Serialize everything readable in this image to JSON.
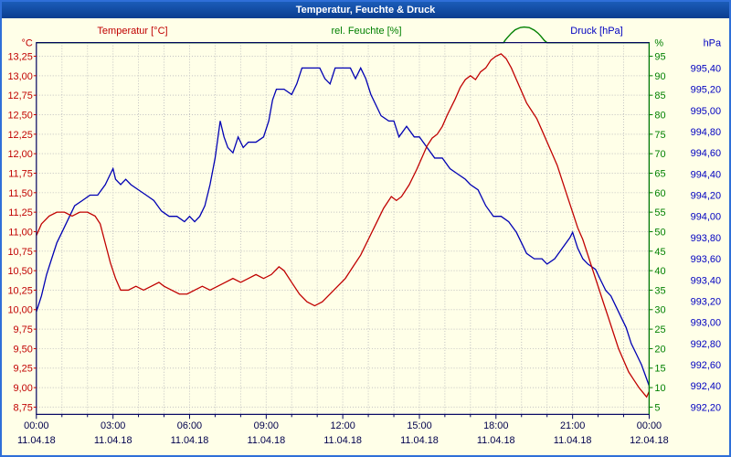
{
  "window": {
    "title": "Temperatur, Feuchte & Druck"
  },
  "legend": {
    "temperature": "Temperatur [°C]",
    "humidity": "rel. Feuchte [%]",
    "pressure": "Druck [hPa]"
  },
  "colors": {
    "background": "#ffffe8",
    "titlebar": "#0d4aa0",
    "window_border": "#2f6fd8",
    "grid": "#c0c0c0",
    "frame": "#000060",
    "temperature": "#c00000",
    "humidity": "#008000",
    "pressure": "#0000b3",
    "x_labels": "#00004d"
  },
  "chart_data": {
    "type": "line",
    "title": "Temperatur, Feuchte & Druck",
    "grid": "dotted; vertical line every hour, horizontal line every temperature step",
    "legend_position": "top",
    "x_axis": {
      "range_hours": [
        0,
        24
      ],
      "tick_step_hours": 3,
      "tick_times": [
        "00:00",
        "03:00",
        "06:00",
        "09:00",
        "12:00",
        "15:00",
        "18:00",
        "21:00",
        "00:00"
      ],
      "tick_dates": [
        "11.04.18",
        "11.04.18",
        "11.04.18",
        "11.04.18",
        "11.04.18",
        "11.04.18",
        "11.04.18",
        "11.04.18",
        "12.04.18"
      ]
    },
    "axes": {
      "temperature": {
        "label": "°C",
        "min": 8.75,
        "max": 13.25,
        "step": 0.25,
        "tick_labels": [
          "13,25",
          "13,00",
          "12,75",
          "12,50",
          "12,25",
          "12,00",
          "11,75",
          "11,50",
          "11,25",
          "11,00",
          "10,75",
          "10,50",
          "10,25",
          "10,00",
          "9,75",
          "9,50",
          "9,25",
          "9,00",
          "8,75"
        ]
      },
      "humidity": {
        "label": "%",
        "min": 5,
        "max": 95,
        "step": 5,
        "tick_labels": [
          "95",
          "90",
          "85",
          "80",
          "75",
          "70",
          "65",
          "60",
          "55",
          "50",
          "45",
          "40",
          "35",
          "30",
          "25",
          "20",
          "15",
          "10",
          "5"
        ]
      },
      "pressure": {
        "label": "hPa",
        "min": 992.2,
        "max": 995.4,
        "step": 0.2,
        "tick_labels": [
          "995,40",
          "995,20",
          "995,00",
          "994,80",
          "994,60",
          "994,40",
          "994,20",
          "994,00",
          "993,80",
          "993,60",
          "993,40",
          "993,20",
          "993,00",
          "992,80",
          "992,60",
          "992,40",
          "992,20"
        ]
      }
    },
    "series": [
      {
        "name": "Temperatur",
        "unit": "°C",
        "color": "#c00000",
        "points": [
          [
            0,
            10.95
          ],
          [
            0.2,
            11.1
          ],
          [
            0.5,
            11.2
          ],
          [
            0.8,
            11.25
          ],
          [
            1.1,
            11.25
          ],
          [
            1.4,
            11.2
          ],
          [
            1.7,
            11.25
          ],
          [
            2.0,
            11.25
          ],
          [
            2.3,
            11.2
          ],
          [
            2.5,
            11.1
          ],
          [
            2.7,
            10.85
          ],
          [
            2.9,
            10.6
          ],
          [
            3.1,
            10.4
          ],
          [
            3.3,
            10.25
          ],
          [
            3.6,
            10.25
          ],
          [
            3.9,
            10.3
          ],
          [
            4.2,
            10.25
          ],
          [
            4.5,
            10.3
          ],
          [
            4.8,
            10.35
          ],
          [
            5.0,
            10.3
          ],
          [
            5.3,
            10.25
          ],
          [
            5.6,
            10.2
          ],
          [
            5.9,
            10.2
          ],
          [
            6.2,
            10.25
          ],
          [
            6.5,
            10.3
          ],
          [
            6.8,
            10.25
          ],
          [
            7.1,
            10.3
          ],
          [
            7.4,
            10.35
          ],
          [
            7.7,
            10.4
          ],
          [
            8.0,
            10.35
          ],
          [
            8.3,
            10.4
          ],
          [
            8.6,
            10.45
          ],
          [
            8.9,
            10.4
          ],
          [
            9.2,
            10.45
          ],
          [
            9.5,
            10.55
          ],
          [
            9.7,
            10.5
          ],
          [
            10.0,
            10.35
          ],
          [
            10.3,
            10.2
          ],
          [
            10.6,
            10.1
          ],
          [
            10.9,
            10.05
          ],
          [
            11.2,
            10.1
          ],
          [
            11.5,
            10.2
          ],
          [
            11.8,
            10.3
          ],
          [
            12.1,
            10.4
          ],
          [
            12.4,
            10.55
          ],
          [
            12.7,
            10.7
          ],
          [
            13.0,
            10.9
          ],
          [
            13.3,
            11.1
          ],
          [
            13.6,
            11.3
          ],
          [
            13.9,
            11.45
          ],
          [
            14.1,
            11.4
          ],
          [
            14.3,
            11.45
          ],
          [
            14.6,
            11.6
          ],
          [
            14.9,
            11.8
          ],
          [
            15.1,
            11.95
          ],
          [
            15.3,
            12.1
          ],
          [
            15.5,
            12.2
          ],
          [
            15.7,
            12.25
          ],
          [
            15.9,
            12.35
          ],
          [
            16.1,
            12.5
          ],
          [
            16.4,
            12.7
          ],
          [
            16.6,
            12.85
          ],
          [
            16.8,
            12.95
          ],
          [
            17.0,
            13.0
          ],
          [
            17.2,
            12.95
          ],
          [
            17.4,
            13.05
          ],
          [
            17.6,
            13.1
          ],
          [
            17.8,
            13.2
          ],
          [
            18.0,
            13.25
          ],
          [
            18.2,
            13.28
          ],
          [
            18.4,
            13.22
          ],
          [
            18.6,
            13.1
          ],
          [
            18.8,
            12.95
          ],
          [
            19.0,
            12.8
          ],
          [
            19.2,
            12.65
          ],
          [
            19.4,
            12.55
          ],
          [
            19.6,
            12.45
          ],
          [
            19.8,
            12.3
          ],
          [
            20.0,
            12.15
          ],
          [
            20.2,
            12.0
          ],
          [
            20.4,
            11.85
          ],
          [
            20.6,
            11.65
          ],
          [
            20.8,
            11.45
          ],
          [
            21.0,
            11.25
          ],
          [
            21.2,
            11.05
          ],
          [
            21.4,
            10.9
          ],
          [
            21.6,
            10.7
          ],
          [
            21.8,
            10.5
          ],
          [
            22.0,
            10.3
          ],
          [
            22.2,
            10.1
          ],
          [
            22.4,
            9.9
          ],
          [
            22.6,
            9.7
          ],
          [
            22.8,
            9.5
          ],
          [
            23.0,
            9.35
          ],
          [
            23.2,
            9.2
          ],
          [
            23.4,
            9.1
          ],
          [
            23.6,
            9.0
          ],
          [
            23.8,
            8.92
          ],
          [
            23.9,
            8.88
          ],
          [
            24,
            8.95
          ]
        ]
      },
      {
        "name": "rel. Feuchte",
        "unit": "%",
        "color": "#008000",
        "points": [
          [
            0,
            98.5
          ],
          [
            18.3,
            98.5
          ],
          [
            18.35,
            99.0
          ],
          [
            18.45,
            99.8
          ],
          [
            18.6,
            100.9
          ],
          [
            18.75,
            101.8
          ],
          [
            18.95,
            102.35
          ],
          [
            19.1,
            102.5
          ],
          [
            19.3,
            102.35
          ],
          [
            19.5,
            101.7
          ],
          [
            19.65,
            100.9
          ],
          [
            19.75,
            100.2
          ],
          [
            19.9,
            99.0
          ],
          [
            20.0,
            98.5
          ],
          [
            24,
            98.5
          ]
        ]
      },
      {
        "name": "Druck",
        "unit": "hPa",
        "color": "#0000b3",
        "points": [
          [
            0,
            993.1
          ],
          [
            0.2,
            993.25
          ],
          [
            0.4,
            993.45
          ],
          [
            0.6,
            993.6
          ],
          [
            0.8,
            993.75
          ],
          [
            1.0,
            993.85
          ],
          [
            1.2,
            993.95
          ],
          [
            1.5,
            994.1
          ],
          [
            1.8,
            994.15
          ],
          [
            2.1,
            994.2
          ],
          [
            2.4,
            994.2
          ],
          [
            2.7,
            994.3
          ],
          [
            2.9,
            994.4
          ],
          [
            3.0,
            994.45
          ],
          [
            3.1,
            994.35
          ],
          [
            3.3,
            994.3
          ],
          [
            3.5,
            994.35
          ],
          [
            3.7,
            994.3
          ],
          [
            4.0,
            994.25
          ],
          [
            4.3,
            994.2
          ],
          [
            4.6,
            994.15
          ],
          [
            4.9,
            994.05
          ],
          [
            5.2,
            994.0
          ],
          [
            5.5,
            994.0
          ],
          [
            5.8,
            993.95
          ],
          [
            6.0,
            994.0
          ],
          [
            6.2,
            993.95
          ],
          [
            6.4,
            994.0
          ],
          [
            6.6,
            994.1
          ],
          [
            6.8,
            994.3
          ],
          [
            7.0,
            994.55
          ],
          [
            7.2,
            994.9
          ],
          [
            7.35,
            994.75
          ],
          [
            7.5,
            994.65
          ],
          [
            7.7,
            994.6
          ],
          [
            7.9,
            994.75
          ],
          [
            8.1,
            994.65
          ],
          [
            8.3,
            994.7
          ],
          [
            8.6,
            994.7
          ],
          [
            8.9,
            994.75
          ],
          [
            9.1,
            994.9
          ],
          [
            9.25,
            995.1
          ],
          [
            9.4,
            995.2
          ],
          [
            9.7,
            995.2
          ],
          [
            10.0,
            995.15
          ],
          [
            10.2,
            995.25
          ],
          [
            10.4,
            995.4
          ],
          [
            10.8,
            995.4
          ],
          [
            11.1,
            995.4
          ],
          [
            11.3,
            995.3
          ],
          [
            11.5,
            995.25
          ],
          [
            11.7,
            995.4
          ],
          [
            12.0,
            995.4
          ],
          [
            12.3,
            995.4
          ],
          [
            12.5,
            995.3
          ],
          [
            12.7,
            995.4
          ],
          [
            12.9,
            995.3
          ],
          [
            13.1,
            995.15
          ],
          [
            13.3,
            995.05
          ],
          [
            13.5,
            994.95
          ],
          [
            13.8,
            994.9
          ],
          [
            14.0,
            994.9
          ],
          [
            14.2,
            994.75
          ],
          [
            14.5,
            994.85
          ],
          [
            14.8,
            994.75
          ],
          [
            15.0,
            994.75
          ],
          [
            15.3,
            994.65
          ],
          [
            15.6,
            994.55
          ],
          [
            15.9,
            994.55
          ],
          [
            16.2,
            994.45
          ],
          [
            16.5,
            994.4
          ],
          [
            16.8,
            994.35
          ],
          [
            17.0,
            994.3
          ],
          [
            17.3,
            994.25
          ],
          [
            17.6,
            994.1
          ],
          [
            17.9,
            994.0
          ],
          [
            18.2,
            994.0
          ],
          [
            18.5,
            993.95
          ],
          [
            18.8,
            993.85
          ],
          [
            19.0,
            993.75
          ],
          [
            19.2,
            993.65
          ],
          [
            19.5,
            993.6
          ],
          [
            19.8,
            993.6
          ],
          [
            20.0,
            993.55
          ],
          [
            20.3,
            993.6
          ],
          [
            20.6,
            993.7
          ],
          [
            20.9,
            993.8
          ],
          [
            21.0,
            993.85
          ],
          [
            21.2,
            993.7
          ],
          [
            21.4,
            993.6
          ],
          [
            21.6,
            993.55
          ],
          [
            21.9,
            993.5
          ],
          [
            22.1,
            993.4
          ],
          [
            22.3,
            993.3
          ],
          [
            22.5,
            993.25
          ],
          [
            22.7,
            993.15
          ],
          [
            22.9,
            993.05
          ],
          [
            23.1,
            992.95
          ],
          [
            23.3,
            992.8
          ],
          [
            23.5,
            992.7
          ],
          [
            23.7,
            992.6
          ],
          [
            23.85,
            992.5
          ],
          [
            24,
            992.4
          ]
        ]
      }
    ]
  }
}
